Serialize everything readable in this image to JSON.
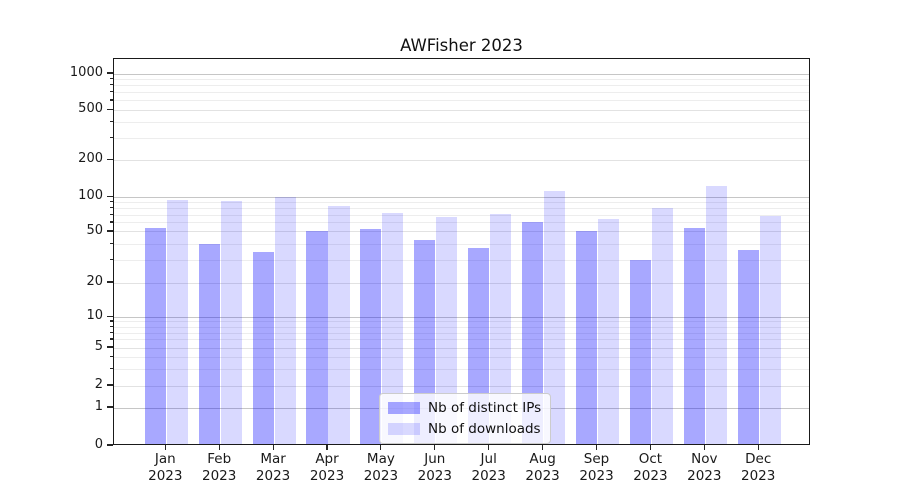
{
  "chart_data": {
    "type": "bar",
    "title": "AWFisher 2023",
    "months": [
      "Jan",
      "Feb",
      "Mar",
      "Apr",
      "May",
      "Jun",
      "Jul",
      "Aug",
      "Sep",
      "Oct",
      "Nov",
      "Dec"
    ],
    "year": "2023",
    "categories": [
      "Jan 2023",
      "Feb 2023",
      "Mar 2023",
      "Apr 2023",
      "May 2023",
      "Jun 2023",
      "Jul 2023",
      "Aug 2023",
      "Sep 2023",
      "Oct 2023",
      "Nov 2023",
      "Dec 2023"
    ],
    "series": [
      {
        "name": "Nb of distinct IPs",
        "color": "#a8a8f8",
        "fill": "rgba(0,0,255,0.34)",
        "values": [
          52,
          39,
          34,
          49,
          51,
          42,
          36,
          59,
          49,
          29,
          52,
          35
        ]
      },
      {
        "name": "Nb of downloads",
        "color": "#d9d9fb",
        "fill": "rgba(0,0,255,0.15)",
        "values": [
          91,
          89,
          96,
          81,
          70,
          65,
          69,
          108,
          62,
          78,
          120,
          66
        ]
      }
    ],
    "yaxis": {
      "scale": "symlog",
      "ticks": [
        0,
        1,
        2,
        5,
        10,
        20,
        50,
        100,
        200,
        500,
        1000
      ]
    },
    "xlabel": "",
    "ylabel": "",
    "grid": true,
    "legend": {
      "position": "lower center",
      "entries": [
        "Nb of distinct IPs",
        "Nb of downloads"
      ]
    },
    "colors": {
      "major_grid": "#c6c6c6",
      "mid_grid": "#e2e2e2",
      "minor_grid": "#ededed",
      "spine": "#1a1a1a",
      "background": "#ffffff"
    }
  }
}
